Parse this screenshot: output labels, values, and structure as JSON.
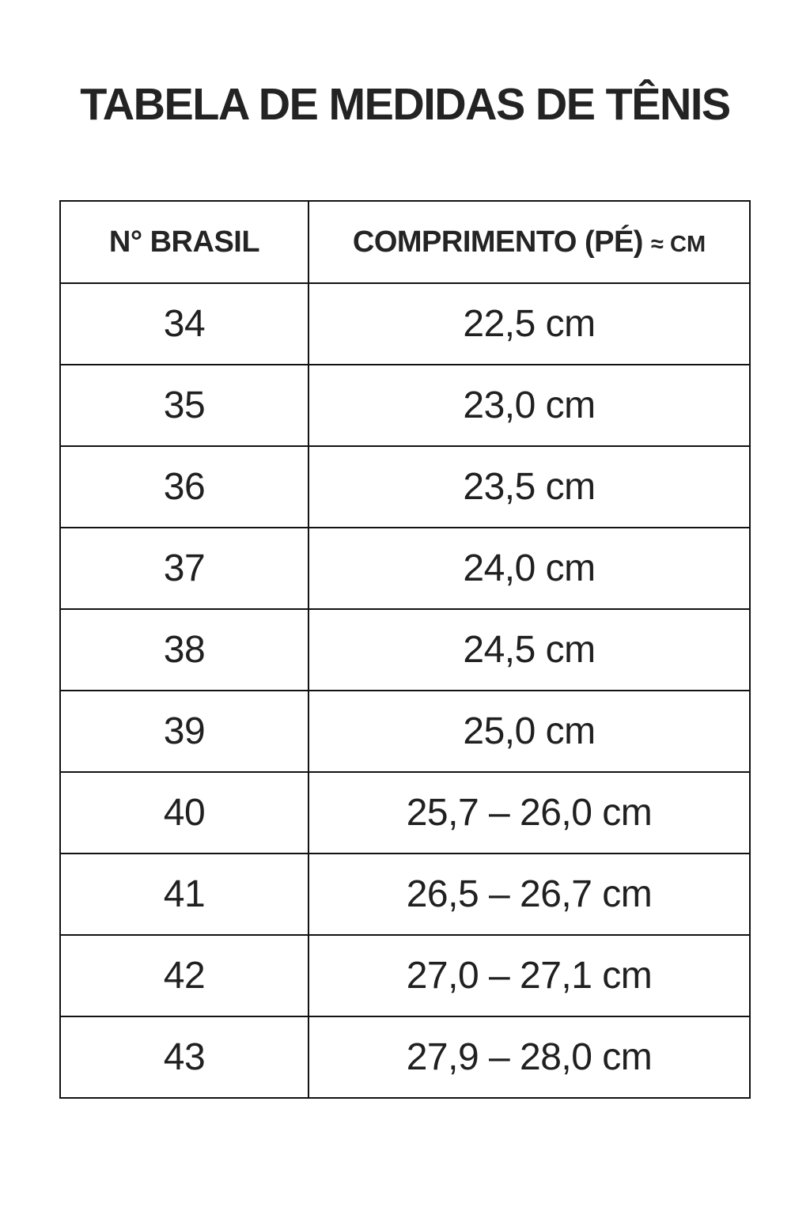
{
  "page": {
    "title": "TABELA DE MEDIDAS DE TÊNIS",
    "background_color": "#ffffff",
    "text_color": "#1f1f1f",
    "border_color": "#121212"
  },
  "table": {
    "header": {
      "col_size": "N° BRASIL",
      "col_length_main": "COMPRIMENTO (PÉ)",
      "col_length_suffix": "≈ CM"
    },
    "rows": [
      {
        "size": "34",
        "length": "22,5 cm"
      },
      {
        "size": "35",
        "length": "23,0 cm"
      },
      {
        "size": "36",
        "length": "23,5 cm"
      },
      {
        "size": "37",
        "length": "24,0 cm"
      },
      {
        "size": "38",
        "length": "24,5 cm"
      },
      {
        "size": "39",
        "length": "25,0 cm"
      },
      {
        "size": "40",
        "length": "25,7 – 26,0 cm"
      },
      {
        "size": "41",
        "length": "26,5 – 26,7 cm"
      },
      {
        "size": "42",
        "length": "27,0 – 27,1 cm"
      },
      {
        "size": "43",
        "length": "27,9 – 28,0 cm"
      }
    ]
  }
}
